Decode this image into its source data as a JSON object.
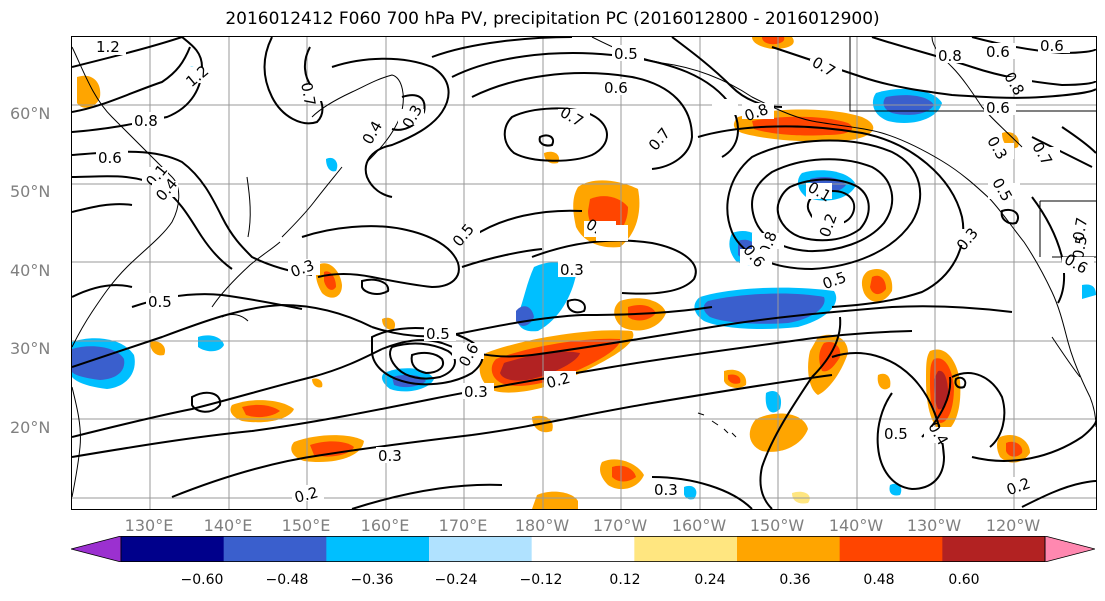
{
  "title": "2016012412 F060 700 hPa PV, precipitation PC (2016012800 - 2016012900)",
  "lat_labels": [
    "60°N",
    "50°N",
    "40°N",
    "30°N",
    "20°N"
  ],
  "lon_labels": [
    "130°E",
    "140°E",
    "150°E",
    "160°E",
    "170°E",
    "180°W",
    "170°W",
    "160°W",
    "150°W",
    "140°W",
    "130°W",
    "120°W"
  ],
  "contour_labels": [
    "1.2",
    "1.2",
    "0.8",
    "0.6",
    "0.7",
    "0.4",
    "0.3",
    "0.5",
    "0.6",
    "0.7",
    "0.7",
    "0.7",
    "0.8",
    "0.6",
    "0.6",
    "0.6",
    "0.8",
    "0.7",
    "0.5",
    "0.3",
    "0.4",
    "0.3",
    "0.5",
    "0.8",
    "0.6",
    "0.5",
    "0.5",
    "0.3",
    "0.4",
    "0.5",
    "0.6",
    "0.3",
    "0.2",
    "0.3",
    "0.2",
    "0.2",
    "0.3",
    "0.5",
    "0.4",
    "0.2",
    "0.3",
    "0.6",
    "0.5",
    "0.1",
    "0.1",
    "0.8",
    "0.7"
  ],
  "colorbar": {
    "ticks": [
      "−0.60",
      "−0.48",
      "−0.36",
      "−0.24",
      "−0.12",
      "0.12",
      "0.24",
      "0.36",
      "0.48",
      "0.60"
    ],
    "colors": [
      "#9b30d0",
      "#00008b",
      "#3a5fcd",
      "#00bfff",
      "#b0e2ff",
      "#ffffff",
      "#ffe680",
      "#ffa500",
      "#ff4500",
      "#b22222",
      "#ff88b0"
    ]
  },
  "colors": {
    "contour": "#000000",
    "coastline": "#000000",
    "grid": "#999999",
    "axis_label": "#808080"
  }
}
